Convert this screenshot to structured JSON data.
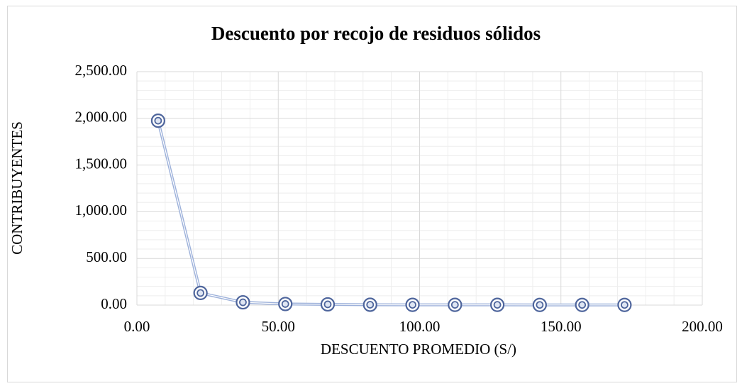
{
  "chart_data": {
    "type": "scatter",
    "title": "Descuento por recojo de residuos sólidos",
    "xlabel": "DESCUENTO PROMEDIO (S/)",
    "ylabel": "CONTRIBUYENTES",
    "x": [
      7.5,
      22.5,
      37.5,
      52.5,
      67.5,
      82.5,
      97.5,
      112.5,
      127.5,
      142.5,
      157.5,
      172.5
    ],
    "series": [
      {
        "color": "#4e659c",
        "values": [
          1975,
          130,
          30,
          12,
          8,
          4,
          3,
          3,
          3,
          2,
          2,
          2
        ]
      }
    ],
    "xlim": [
      0,
      200
    ],
    "xticks": [
      {
        "value": 0,
        "label": "0.00"
      },
      {
        "value": 50,
        "label": "50.00"
      },
      {
        "value": 100,
        "label": "100.00"
      },
      {
        "value": 150,
        "label": "150.00"
      },
      {
        "value": 200,
        "label": "200.00"
      }
    ],
    "ylim": [
      0,
      2500
    ],
    "yticks": [
      {
        "value": 0,
        "label": "0.00"
      },
      {
        "value": 500,
        "label": "500.00"
      },
      {
        "value": 1000,
        "label": "1,000.00"
      },
      {
        "value": 1500,
        "label": "1,500.00"
      },
      {
        "value": 2000,
        "label": "2,000.00"
      },
      {
        "value": 2500,
        "label": "2,500.00"
      }
    ],
    "grid": true,
    "minor_grid": true
  }
}
